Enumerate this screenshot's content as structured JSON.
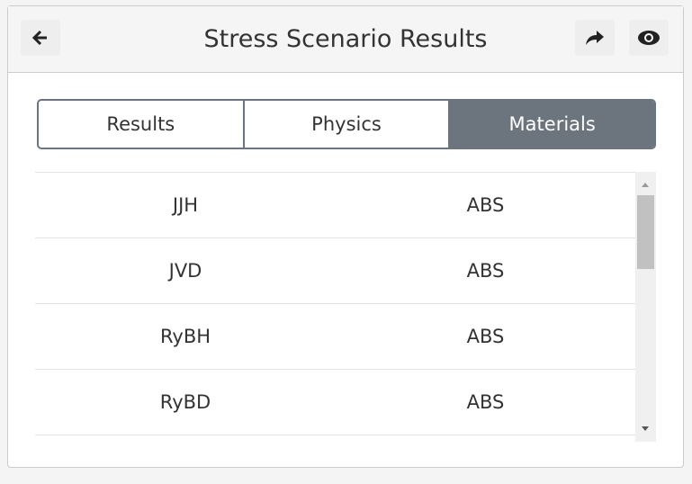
{
  "header": {
    "title": "Stress Scenario Results"
  },
  "tabs": [
    "Results",
    "Physics",
    "Materials"
  ],
  "table": {
    "rows": [
      [
        "JJH",
        "ABS"
      ],
      [
        "JVD",
        "ABS"
      ],
      [
        "RyBH",
        "ABS"
      ],
      [
        "RyBD",
        "ABS"
      ]
    ]
  }
}
